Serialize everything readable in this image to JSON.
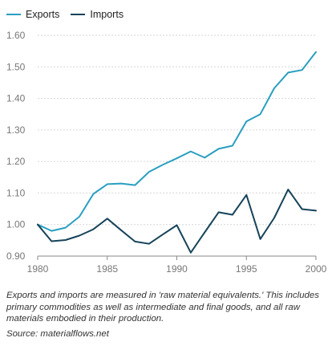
{
  "legend": [
    {
      "label": "Exports",
      "color": "#2a9ec0"
    },
    {
      "label": "Imports",
      "color": "#16435a"
    }
  ],
  "chart_data": {
    "type": "line",
    "x": [
      1980,
      1981,
      1982,
      1983,
      1984,
      1985,
      1986,
      1987,
      1988,
      1989,
      1990,
      1991,
      1992,
      1993,
      1994,
      1995,
      1996,
      1997,
      1998,
      1999,
      2000
    ],
    "series": [
      {
        "name": "Exports",
        "color": "#2a9ec0",
        "values": [
          1.0,
          0.98,
          0.99,
          1.025,
          1.097,
          1.128,
          1.13,
          1.125,
          1.167,
          1.19,
          1.21,
          1.232,
          1.212,
          1.24,
          1.25,
          1.327,
          1.35,
          1.432,
          1.482,
          1.49,
          1.547
        ]
      },
      {
        "name": "Imports",
        "color": "#16435a",
        "values": [
          1.0,
          0.947,
          0.951,
          0.965,
          0.985,
          1.019,
          0.982,
          0.946,
          0.939,
          0.969,
          0.998,
          0.911,
          0.975,
          1.039,
          1.031,
          1.094,
          0.954,
          1.021,
          1.111,
          1.049,
          1.044
        ]
      }
    ],
    "xticks": [
      1980,
      1985,
      1990,
      1995,
      2000
    ],
    "yticks": [
      0.9,
      1.0,
      1.1,
      1.2,
      1.3,
      1.4,
      1.5,
      1.6
    ],
    "yticklabels": [
      "0.90",
      "1.00",
      "1.10",
      "1.20",
      "1.30",
      "1.40",
      "1.50",
      "1.60"
    ],
    "xlim": [
      1980,
      2000
    ],
    "ylim": [
      0.9,
      1.6
    ],
    "grid": "horizontal",
    "legend_position": "top-left",
    "title": "",
    "xlabel": "",
    "ylabel": ""
  },
  "footnote": {
    "note": "Exports and imports are measured in 'raw material equivalents.' This includes primary commodities as well as intermediate and final goods, and all raw materials embodied in their production.",
    "source": "Source: materialflows.net"
  }
}
